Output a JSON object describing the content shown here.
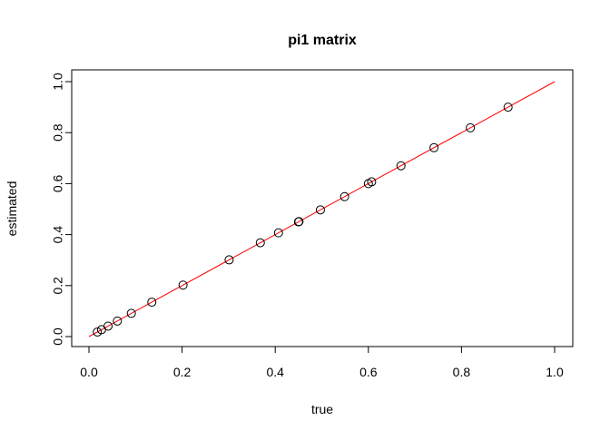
{
  "chart_data": {
    "type": "scatter",
    "title": "pi1 matrix",
    "xlabel": "true",
    "ylabel": "estimated",
    "xlim": [
      0,
      1
    ],
    "ylim": [
      0,
      1
    ],
    "xticks": [
      "0.0",
      "0.2",
      "0.4",
      "0.6",
      "0.8",
      "1.0"
    ],
    "yticks": [
      "0.0",
      "0.2",
      "0.4",
      "0.6",
      "0.8",
      "1.0"
    ],
    "grid": false,
    "points": {
      "x": [
        0.018,
        0.027,
        0.041,
        0.061,
        0.091,
        0.135,
        0.202,
        0.301,
        0.368,
        0.407,
        0.45,
        0.451,
        0.497,
        0.549,
        0.6,
        0.607,
        0.67,
        0.741,
        0.819,
        0.9
      ],
      "y": [
        0.018,
        0.027,
        0.041,
        0.061,
        0.091,
        0.135,
        0.202,
        0.301,
        0.368,
        0.407,
        0.45,
        0.451,
        0.497,
        0.549,
        0.6,
        0.607,
        0.67,
        0.741,
        0.819,
        0.9
      ]
    },
    "reference_line": {
      "x": [
        0,
        1
      ],
      "y": [
        0,
        1
      ]
    },
    "colors": {
      "points": "#000000",
      "reference_line": "#ff0000",
      "axes": "#000000"
    }
  }
}
